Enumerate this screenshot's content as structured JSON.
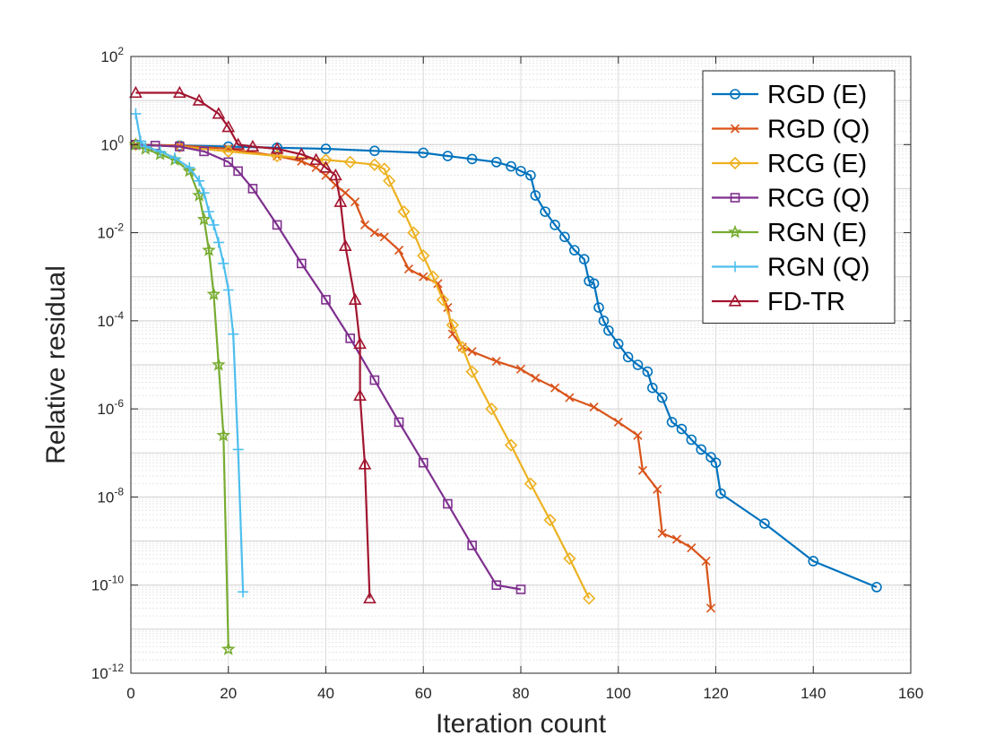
{
  "chart_data": {
    "type": "line",
    "title": "",
    "xlabel": "Iteration count",
    "ylabel": "Relative residual",
    "xlim": [
      0,
      160
    ],
    "ylim_log10": [
      -12,
      2
    ],
    "yscale": "log",
    "grid": true,
    "minor_grid": true,
    "legend_position": "top-right",
    "x_ticks": [
      0,
      20,
      40,
      60,
      80,
      100,
      120,
      140,
      160
    ],
    "y_tick_exponents": [
      -12,
      -10,
      -8,
      -6,
      -4,
      -2,
      0,
      2
    ],
    "y_tick_base": "10",
    "series": [
      {
        "name": "RGD (E)",
        "color": "#0072BD",
        "marker": "circle",
        "points": [
          [
            1,
            1.0
          ],
          [
            10,
            0.95
          ],
          [
            20,
            0.9
          ],
          [
            30,
            0.85
          ],
          [
            40,
            0.8
          ],
          [
            50,
            0.72
          ],
          [
            60,
            0.65
          ],
          [
            65,
            0.55
          ],
          [
            70,
            0.47
          ],
          [
            75,
            0.4
          ],
          [
            78,
            0.32
          ],
          [
            80,
            0.25
          ],
          [
            82,
            0.2
          ],
          [
            83,
            0.07
          ],
          [
            85,
            0.03
          ],
          [
            87,
            0.015
          ],
          [
            89,
            0.008
          ],
          [
            91,
            0.004
          ],
          [
            93,
            0.0025
          ],
          [
            94,
            0.0008
          ],
          [
            95,
            0.0007
          ],
          [
            96,
            0.0002
          ],
          [
            97,
            0.0001
          ],
          [
            98,
            6e-05
          ],
          [
            100,
            3e-05
          ],
          [
            102,
            1.5e-05
          ],
          [
            104,
            1e-05
          ],
          [
            106,
            7e-06
          ],
          [
            107,
            3e-06
          ],
          [
            109,
            1.8e-06
          ],
          [
            111,
            5e-07
          ],
          [
            113,
            3.5e-07
          ],
          [
            115,
            2e-07
          ],
          [
            117,
            1.2e-07
          ],
          [
            119,
            8e-08
          ],
          [
            120,
            6e-08
          ],
          [
            121,
            1.2e-08
          ],
          [
            130,
            2.5e-09
          ],
          [
            140,
            3.5e-10
          ],
          [
            153,
            9e-11
          ]
        ]
      },
      {
        "name": "RGD (Q)",
        "color": "#D95319",
        "marker": "x",
        "points": [
          [
            1,
            1.0
          ],
          [
            10,
            0.95
          ],
          [
            20,
            0.8
          ],
          [
            30,
            0.55
          ],
          [
            35,
            0.42
          ],
          [
            38,
            0.3
          ],
          [
            40,
            0.2
          ],
          [
            42,
            0.12
          ],
          [
            44,
            0.08
          ],
          [
            46,
            0.05
          ],
          [
            48,
            0.015
          ],
          [
            50,
            0.01
          ],
          [
            52,
            0.008
          ],
          [
            55,
            0.004
          ],
          [
            57,
            0.0015
          ],
          [
            60,
            0.001
          ],
          [
            63,
            0.0007
          ],
          [
            65,
            0.0002
          ],
          [
            66,
            5e-05
          ],
          [
            68,
            2.5e-05
          ],
          [
            70,
            2e-05
          ],
          [
            75,
            1.2e-05
          ],
          [
            80,
            8e-06
          ],
          [
            83,
            5e-06
          ],
          [
            87,
            3e-06
          ],
          [
            90,
            1.8e-06
          ],
          [
            95,
            1.1e-06
          ],
          [
            100,
            5e-07
          ],
          [
            104,
            2.5e-07
          ],
          [
            105,
            4e-08
          ],
          [
            108,
            1.5e-08
          ],
          [
            109,
            1.5e-09
          ],
          [
            112,
            1.1e-09
          ],
          [
            115,
            7e-10
          ],
          [
            118,
            3.5e-10
          ],
          [
            119,
            3e-11
          ]
        ]
      },
      {
        "name": "RCG (E)",
        "color": "#EDB120",
        "marker": "diamond",
        "points": [
          [
            1,
            1.0
          ],
          [
            10,
            0.9
          ],
          [
            20,
            0.7
          ],
          [
            30,
            0.55
          ],
          [
            40,
            0.45
          ],
          [
            45,
            0.4
          ],
          [
            50,
            0.35
          ],
          [
            52,
            0.28
          ],
          [
            53,
            0.15
          ],
          [
            56,
            0.03
          ],
          [
            58,
            0.01
          ],
          [
            60,
            0.003
          ],
          [
            62,
            0.001
          ],
          [
            64,
            0.0003
          ],
          [
            66,
            8e-05
          ],
          [
            68,
            2.5e-05
          ],
          [
            70,
            7e-06
          ],
          [
            74,
            1e-06
          ],
          [
            78,
            1.5e-07
          ],
          [
            82,
            2e-08
          ],
          [
            86,
            3e-09
          ],
          [
            90,
            4e-10
          ],
          [
            94,
            5e-11
          ]
        ]
      },
      {
        "name": "RCG (Q)",
        "color": "#7E2F8E",
        "marker": "square",
        "points": [
          [
            1,
            1.0
          ],
          [
            5,
            0.95
          ],
          [
            10,
            0.9
          ],
          [
            15,
            0.7
          ],
          [
            20,
            0.4
          ],
          [
            22,
            0.25
          ],
          [
            25,
            0.1
          ],
          [
            30,
            0.015
          ],
          [
            35,
            0.002
          ],
          [
            40,
            0.0003
          ],
          [
            45,
            4e-05
          ],
          [
            50,
            4.5e-06
          ],
          [
            55,
            5e-07
          ],
          [
            60,
            6e-08
          ],
          [
            65,
            7e-09
          ],
          [
            70,
            8e-10
          ],
          [
            75,
            1e-10
          ],
          [
            80,
            8e-11
          ]
        ]
      },
      {
        "name": "RGN (E)",
        "color": "#77AC30",
        "marker": "star",
        "points": [
          [
            1,
            1.0
          ],
          [
            3,
            0.8
          ],
          [
            6,
            0.6
          ],
          [
            9,
            0.45
          ],
          [
            12,
            0.25
          ],
          [
            14,
            0.07
          ],
          [
            15,
            0.02
          ],
          [
            16,
            0.004
          ],
          [
            17,
            0.0004
          ],
          [
            18,
            1e-05
          ],
          [
            19,
            2.5e-07
          ],
          [
            20,
            3.5e-12
          ]
        ]
      },
      {
        "name": "RGN (Q)",
        "color": "#4DBEEE",
        "marker": "plus",
        "points": [
          [
            1,
            5.0
          ],
          [
            2,
            1.2
          ],
          [
            3,
            0.9
          ],
          [
            6,
            0.7
          ],
          [
            9,
            0.5
          ],
          [
            12,
            0.3
          ],
          [
            14,
            0.15
          ],
          [
            15,
            0.08
          ],
          [
            16,
            0.03
          ],
          [
            17,
            0.015
          ],
          [
            18,
            0.006
          ],
          [
            19,
            0.002
          ],
          [
            20,
            0.0005
          ],
          [
            21,
            5e-05
          ],
          [
            22,
            1.2e-07
          ],
          [
            23,
            7e-11
          ]
        ]
      },
      {
        "name": "FD-TR",
        "color": "#A2142F",
        "marker": "triangle",
        "points": [
          [
            1,
            15
          ],
          [
            10,
            15
          ],
          [
            14,
            10
          ],
          [
            18,
            5
          ],
          [
            20,
            2.5
          ],
          [
            22,
            1.0
          ],
          [
            25,
            0.9
          ],
          [
            30,
            0.8
          ],
          [
            35,
            0.6
          ],
          [
            38,
            0.45
          ],
          [
            40,
            0.3
          ],
          [
            42,
            0.2
          ],
          [
            43,
            0.05
          ],
          [
            44,
            0.005
          ],
          [
            46,
            0.0003
          ],
          [
            47,
            3e-05
          ],
          [
            47,
            2e-06
          ],
          [
            48,
            5.5e-08
          ],
          [
            49,
            5e-11
          ]
        ]
      }
    ]
  }
}
